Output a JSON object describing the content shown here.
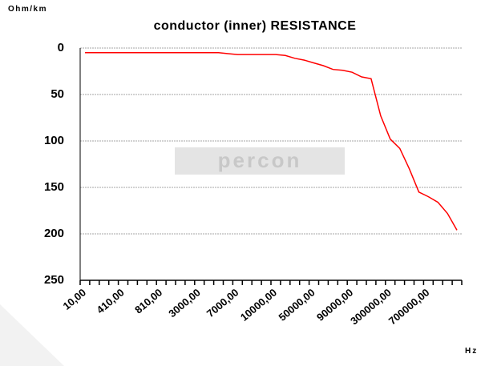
{
  "chart_data": {
    "type": "line",
    "title": "conductor  (inner) RESISTANCE",
    "y_label": "Ohm/km",
    "x_label": "Hz",
    "watermark": "percon",
    "categories": [
      "10,00",
      null,
      null,
      null,
      "410,00",
      null,
      null,
      null,
      "810,00",
      null,
      null,
      null,
      "3000,00",
      null,
      null,
      null,
      "7000,00",
      null,
      null,
      null,
      "10000,00",
      null,
      null,
      null,
      "50000,00",
      null,
      null,
      null,
      "90000,00",
      null,
      null,
      null,
      "300000,00",
      null,
      null,
      null,
      "700000,00",
      null,
      null,
      null
    ],
    "series": [
      {
        "name": "resistance",
        "color": "#ff0000",
        "values": [
          5,
          5,
          5,
          5,
          5,
          5,
          5,
          5,
          5,
          5,
          5,
          5,
          5,
          5,
          5,
          6,
          7,
          7,
          7,
          7,
          7,
          8,
          11,
          13,
          16,
          19,
          23,
          24,
          26,
          31,
          33,
          73,
          98,
          108,
          130,
          155,
          160,
          166,
          178,
          196
        ]
      }
    ],
    "ylim": [
      0,
      250
    ],
    "y_inverted": true,
    "yticks": [
      0,
      50,
      100,
      150,
      200,
      250
    ],
    "grid": true
  }
}
